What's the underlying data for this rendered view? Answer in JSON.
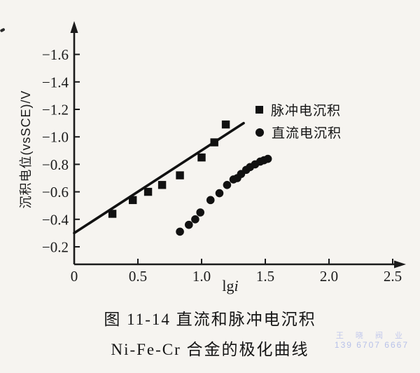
{
  "caption": {
    "line1": "图 11-14  直流和脉冲电沉积",
    "line2": "Ni-Fe-Cr 合金的极化曲线"
  },
  "watermark": {
    "line1": "王 晓 阀 业",
    "line2": "139 6707 6667",
    "color": "#b7c1e9"
  },
  "chart_data": {
    "type": "scatter",
    "title": "直流和脉冲电沉积 Ni-Fe-Cr 合金的极化曲线",
    "xlabel_prefix": "lg",
    "xlabel_italic": "i",
    "ylabel": "沉积电位(vsSCE)/V",
    "x_ticks": [
      0,
      0.5,
      1.0,
      1.5,
      2.0,
      2.5
    ],
    "x_tick_labels": [
      "0",
      "0.5",
      "1.0",
      "1.5",
      "2.0",
      "2.5"
    ],
    "y_ticks": [
      -1.6,
      -1.4,
      -1.2,
      -1.0,
      -0.8,
      -0.6,
      -0.4,
      -0.2
    ],
    "y_tick_labels": [
      "−1.6",
      "−1.4",
      "−1.2",
      "−1.0",
      "−0.8",
      "−0.6",
      "−0.4",
      "−0.2"
    ],
    "xlim": [
      0,
      2.6
    ],
    "ylim": [
      -0.05,
      -1.7
    ],
    "y_axis_inverted_negative": true,
    "grid": false,
    "legend_position": "upper-right-inside",
    "marker_color": "#111111",
    "series": [
      {
        "name": "脉冲电沉积",
        "marker": "square",
        "points": [
          [
            0.3,
            -0.44
          ],
          [
            0.46,
            -0.54
          ],
          [
            0.58,
            -0.6
          ],
          [
            0.69,
            -0.65
          ],
          [
            0.83,
            -0.72
          ],
          [
            1.0,
            -0.85
          ],
          [
            1.1,
            -0.96
          ],
          [
            1.19,
            -1.09
          ]
        ]
      },
      {
        "name": "直流电沉积",
        "marker": "circle",
        "points": [
          [
            0.83,
            -0.31
          ],
          [
            0.9,
            -0.36
          ],
          [
            0.95,
            -0.4
          ],
          [
            0.99,
            -0.45
          ],
          [
            1.07,
            -0.54
          ],
          [
            1.14,
            -0.59
          ],
          [
            1.2,
            -0.65
          ],
          [
            1.25,
            -0.69
          ],
          [
            1.28,
            -0.7
          ],
          [
            1.31,
            -0.73
          ],
          [
            1.35,
            -0.76
          ],
          [
            1.38,
            -0.78
          ],
          [
            1.42,
            -0.8
          ],
          [
            1.46,
            -0.82
          ],
          [
            1.49,
            -0.83
          ],
          [
            1.52,
            -0.84
          ]
        ]
      }
    ],
    "fit_line": {
      "series": "脉冲电沉积",
      "x1": 0.0,
      "y1": -0.3,
      "x2": 1.33,
      "y2": -1.1
    }
  }
}
